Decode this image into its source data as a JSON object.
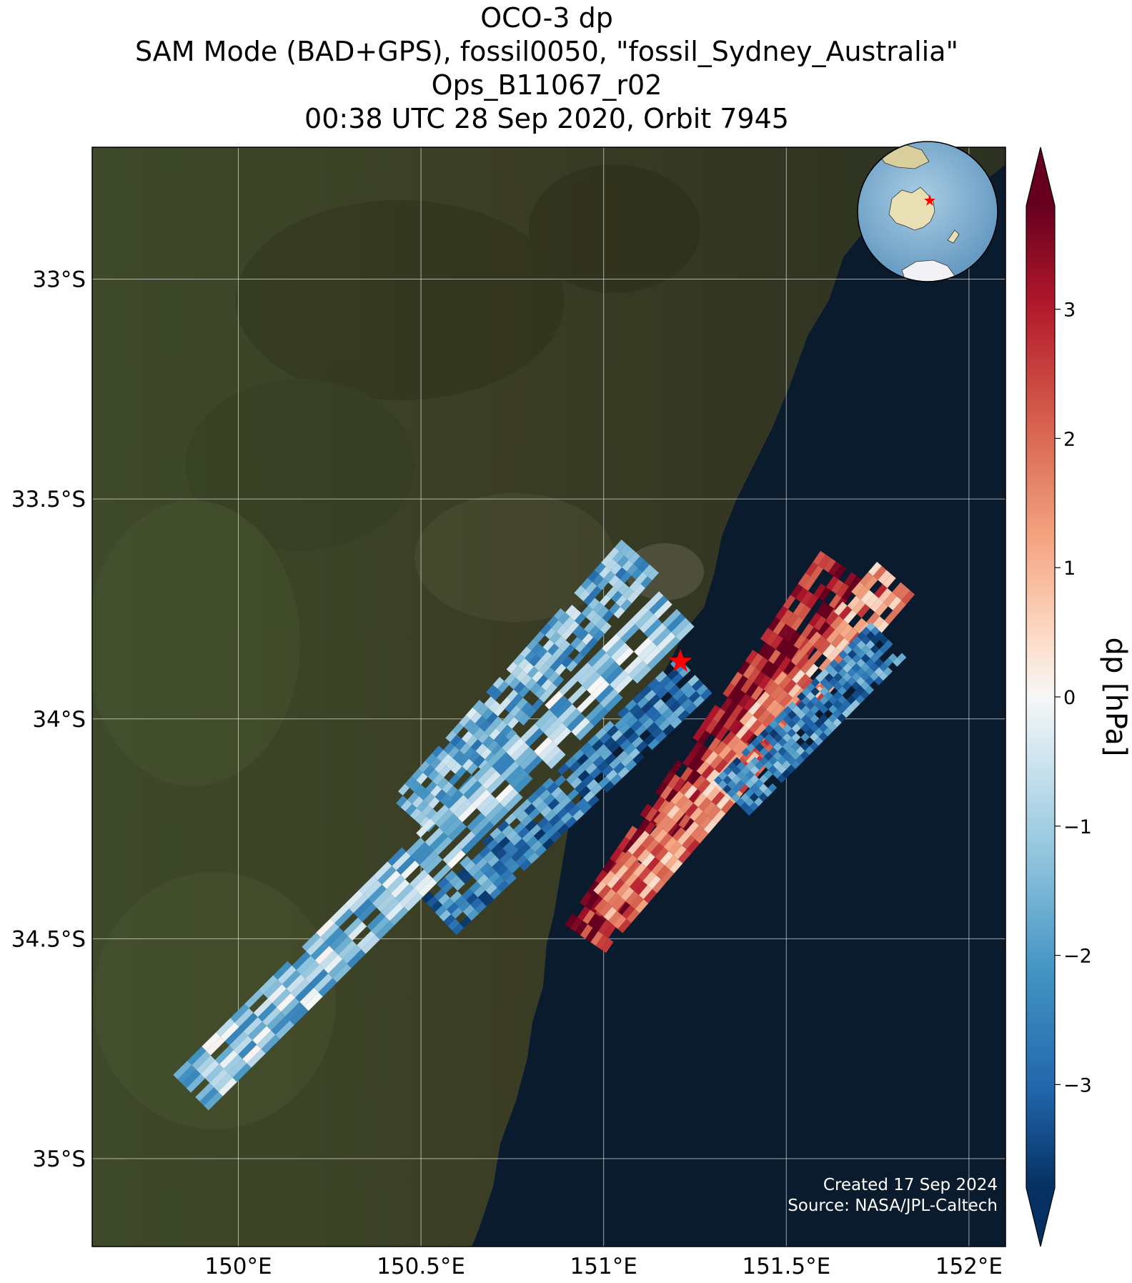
{
  "title": {
    "line1": "OCO-3 dp",
    "line2": "SAM Mode (BAD+GPS), fossil0050, \"fossil_Sydney_Australia\"",
    "line3": "Ops_B11067_r02",
    "line4": "00:38 UTC 28 Sep 2020, Orbit 7945"
  },
  "map": {
    "lon_range": [
      149.6,
      152.1
    ],
    "lat_range": [
      -35.2,
      -32.7
    ],
    "lat_ticks": [
      {
        "value": -33.0,
        "label": "33°S"
      },
      {
        "value": -33.5,
        "label": "33.5°S"
      },
      {
        "value": -34.0,
        "label": "34°S"
      },
      {
        "value": -34.5,
        "label": "34.5°S"
      },
      {
        "value": -35.0,
        "label": "35°S"
      }
    ],
    "lon_ticks": [
      {
        "value": 150.0,
        "label": "150°E"
      },
      {
        "value": 150.5,
        "label": "150.5°E"
      },
      {
        "value": 151.0,
        "label": "151°E"
      },
      {
        "value": 151.5,
        "label": "151.5°E"
      },
      {
        "value": 152.0,
        "label": "152°E"
      }
    ],
    "grid": true,
    "target_marker": {
      "lon": 151.21,
      "lat": -33.87,
      "color": "#ff0000"
    },
    "inset_globe": "Australia with target star"
  },
  "credits": {
    "created": "Created 17 Sep 2024",
    "source": "Source: NASA/JPL-Caltech"
  },
  "colorbar": {
    "label": "dp [hPa]",
    "range": [
      -3.8,
      3.8
    ],
    "extend": "both",
    "colormap": "RdBu_r",
    "ticks": [
      {
        "value": 3,
        "label": "3"
      },
      {
        "value": 2,
        "label": "2"
      },
      {
        "value": 1,
        "label": "1"
      },
      {
        "value": 0,
        "label": "0"
      },
      {
        "value": -1,
        "label": "−1"
      },
      {
        "value": -2,
        "label": "−2"
      },
      {
        "value": -3,
        "label": "−3"
      }
    ]
  },
  "chart_data": {
    "type": "heatmap",
    "quantity": "dp",
    "unit": "hPa",
    "swaths": [
      {
        "lon_start": 150.47,
        "lat_start": -34.22,
        "lon_end": 151.1,
        "lat_end": -33.63,
        "mean_dp": -1.6
      },
      {
        "lon_start": 149.87,
        "lat_start": -34.85,
        "lon_end": 151.2,
        "lat_end": -33.75,
        "mean_dp": -1.2
      },
      {
        "lon_start": 150.55,
        "lat_start": -34.45,
        "lon_end": 151.25,
        "lat_end": -33.9,
        "mean_dp": -2.5
      },
      {
        "lon_start": 150.95,
        "lat_start": -34.5,
        "lon_end": 151.65,
        "lat_end": -33.65,
        "mean_dp": 3.2
      },
      {
        "lon_start": 151.0,
        "lat_start": -34.45,
        "lon_end": 151.8,
        "lat_end": -33.68,
        "mean_dp": 1.6
      },
      {
        "lon_start": 151.35,
        "lat_start": -34.18,
        "lon_end": 151.78,
        "lat_end": -33.82,
        "mean_dp": -2.4
      }
    ]
  }
}
